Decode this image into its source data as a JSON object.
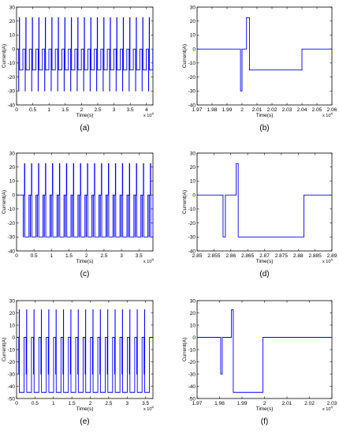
{
  "chart_data": [
    {
      "id": "a",
      "type": "line",
      "caption": "(a)",
      "xlabel": "Time(s)",
      "ylabel": "Current(A)",
      "xlim": [
        0,
        4.2
      ],
      "ylim": [
        -40,
        30
      ],
      "x_multiplier": "x 10^4",
      "xticks": [
        0,
        0.5,
        1,
        1.5,
        2,
        2.5,
        3,
        3.5,
        4
      ],
      "yticks": [
        -40,
        -30,
        -20,
        -10,
        0,
        10,
        20,
        30
      ],
      "xtick_labels": [
        "0",
        "0.5",
        "1",
        "1.5",
        "2",
        "2.5",
        "3",
        "3.5",
        "4"
      ],
      "ytick_labels": [
        "-40",
        "-30",
        "-20",
        "-10",
        "0",
        "10",
        "20",
        "30"
      ],
      "line_color": "#0000ff",
      "series": [
        {
          "mode": "pulse_train",
          "start": 0.065,
          "period": 0.2,
          "count": 21,
          "baseline": 0,
          "segments": [
            [
              0.0,
              0.004,
              -30
            ],
            [
              0.02,
              0.028,
              22.5
            ],
            [
              0.028,
              0.13,
              -15
            ]
          ]
        }
      ]
    },
    {
      "id": "b",
      "type": "line",
      "caption": "(b)",
      "xlabel": "Time(s)",
      "ylabel": "Current(A)",
      "xlim": [
        1.97,
        2.06
      ],
      "ylim": [
        -40,
        30
      ],
      "x_multiplier": "x 10^4",
      "xticks": [
        1.97,
        1.98,
        1.99,
        2,
        2.01,
        2.02,
        2.03,
        2.04,
        2.05,
        2.06
      ],
      "yticks": [
        -40,
        -30,
        -20,
        -10,
        0,
        10,
        20,
        30
      ],
      "xtick_labels": [
        "1.97",
        "1.98",
        "1.99",
        "2",
        "2.01",
        "2.02",
        "2.03",
        "2.04",
        "2.05",
        "2.06"
      ],
      "ytick_labels": [
        "-40",
        "-30",
        "-20",
        "-10",
        "0",
        "10",
        "20",
        "30"
      ],
      "line_color": "#0000ff",
      "series": [
        {
          "mode": "steps",
          "points": [
            [
              1.97,
              0
            ],
            [
              1.999,
              0
            ],
            [
              1.999,
              -30
            ],
            [
              2.0,
              -30
            ],
            [
              2.0,
              0
            ],
            [
              2.003,
              0
            ],
            [
              2.003,
              22.5
            ],
            [
              2.005,
              22.5
            ],
            [
              2.005,
              -15
            ],
            [
              2.04,
              -15
            ],
            [
              2.04,
              0
            ],
            [
              2.06,
              0
            ]
          ]
        }
      ]
    },
    {
      "id": "c",
      "type": "line",
      "caption": "(c)",
      "xlabel": "Time(s)",
      "ylabel": "Current(A)",
      "xlim": [
        0,
        3.9
      ],
      "ylim": [
        -40,
        30
      ],
      "x_multiplier": "x 10^4",
      "xticks": [
        0,
        0.5,
        1,
        1.5,
        2,
        2.5,
        3,
        3.5
      ],
      "yticks": [
        -40,
        -30,
        -20,
        -10,
        0,
        10,
        20,
        30
      ],
      "xtick_labels": [
        "0",
        "0.5",
        "1",
        "1.5",
        "2",
        "2.5",
        "3",
        "3.5"
      ],
      "ytick_labels": [
        "-40",
        "-30",
        "-20",
        "-10",
        "0",
        "10",
        "20",
        "30"
      ],
      "line_color": "#0000ff",
      "series": [
        {
          "mode": "pulse_train",
          "start": 0.19,
          "period": 0.2,
          "count": 19,
          "baseline": 0,
          "segments": [
            [
              0.0,
              0.006,
              -30
            ],
            [
              0.036,
              0.046,
              22.5
            ],
            [
              0.046,
              0.165,
              -30
            ]
          ]
        }
      ]
    },
    {
      "id": "d",
      "type": "line",
      "caption": "(d)",
      "xlabel": "Time(s)",
      "ylabel": "Current(A)",
      "xlim": [
        2.85,
        2.89
      ],
      "ylim": [
        -40,
        30
      ],
      "x_multiplier": "x 10^4",
      "xticks": [
        2.85,
        2.855,
        2.86,
        2.865,
        2.87,
        2.875,
        2.88,
        2.885,
        2.89
      ],
      "yticks": [
        -40,
        -30,
        -20,
        -10,
        0,
        10,
        20,
        30
      ],
      "xtick_labels": [
        "2.85",
        "2.855",
        "2.86",
        "2.865",
        "2.87",
        "2.875",
        "2.88",
        "2.885",
        "2.89"
      ],
      "ytick_labels": [
        "-40",
        "-30",
        "-20",
        "-10",
        "0",
        "10",
        "20",
        "30"
      ],
      "line_color": "#0000ff",
      "series": [
        {
          "mode": "steps",
          "points": [
            [
              2.85,
              0
            ],
            [
              2.8577,
              0
            ],
            [
              2.8577,
              -30
            ],
            [
              2.8584,
              -30
            ],
            [
              2.8584,
              0
            ],
            [
              2.8616,
              0
            ],
            [
              2.8616,
              22.5
            ],
            [
              2.8622,
              22.5
            ],
            [
              2.8622,
              -30
            ],
            [
              2.8817,
              -30
            ],
            [
              2.8817,
              0
            ],
            [
              2.89,
              0
            ]
          ]
        }
      ]
    },
    {
      "id": "e",
      "type": "line",
      "caption": "(e)",
      "xlabel": "Time(s)",
      "ylabel": "Current(A)",
      "xlim": [
        0,
        3.7
      ],
      "ylim": [
        -50,
        30
      ],
      "x_multiplier": "x 10^4",
      "xticks": [
        0,
        0.5,
        1,
        1.5,
        2,
        2.5,
        3,
        3.5
      ],
      "yticks": [
        -50,
        -40,
        -30,
        -20,
        -10,
        0,
        10,
        20,
        30
      ],
      "xtick_labels": [
        "0",
        "0.5",
        "1",
        "1.5",
        "2",
        "2.5",
        "3",
        "3.5"
      ],
      "ytick_labels": [
        "-50",
        "-40",
        "-30",
        "-20",
        "-10",
        "0",
        "10",
        "20",
        "30"
      ],
      "line_color": "#0000ff",
      "series": [
        {
          "mode": "pulse_train",
          "start": 0.06,
          "period": 0.2,
          "count": 18,
          "baseline": 0,
          "segments": [
            [
              0.0,
              0.003,
              -30
            ],
            [
              0.012,
              0.016,
              22.5
            ],
            [
              0.016,
              0.145,
              -45
            ]
          ]
        }
      ]
    },
    {
      "id": "f",
      "type": "line",
      "caption": "(f)",
      "xlabel": "Time(s)",
      "ylabel": "Current(A)",
      "xlim": [
        1.97,
        2.03
      ],
      "ylim": [
        -50,
        30
      ],
      "x_multiplier": "x 10^4",
      "xticks": [
        1.97,
        1.98,
        1.99,
        2,
        2.01,
        2.02,
        2.03
      ],
      "yticks": [
        -50,
        -40,
        -30,
        -20,
        -10,
        0,
        10,
        20,
        30
      ],
      "xtick_labels": [
        "1.97",
        "1.98",
        "1.99",
        "2",
        "2.01",
        "2.02",
        "2.03"
      ],
      "ytick_labels": [
        "-50",
        "-40",
        "-30",
        "-20",
        "-10",
        "0",
        "10",
        "20",
        "30"
      ],
      "line_color": "#0000ff",
      "series": [
        {
          "mode": "steps",
          "points": [
            [
              1.97,
              0
            ],
            [
              1.9805,
              0
            ],
            [
              1.9805,
              -30
            ],
            [
              1.9812,
              -30
            ],
            [
              1.9812,
              0
            ],
            [
              1.9853,
              0
            ],
            [
              1.9853,
              22.5
            ],
            [
              1.9861,
              22.5
            ],
            [
              1.9861,
              -45
            ],
            [
              1.9993,
              -45
            ],
            [
              1.9993,
              0
            ],
            [
              2.03,
              0
            ]
          ]
        }
      ]
    }
  ]
}
